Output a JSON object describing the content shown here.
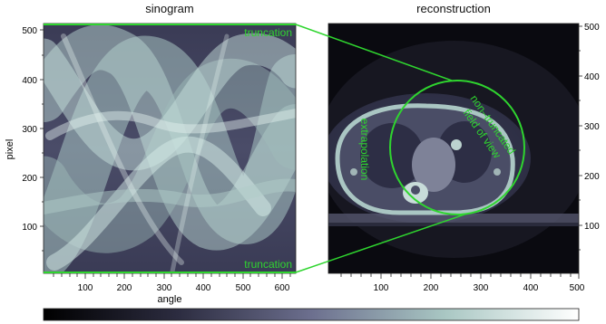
{
  "left_panel": {
    "title": "sinogram",
    "xlabel": "angle",
    "ylabel": "pixel",
    "xticks": [
      "100",
      "200",
      "300",
      "400",
      "500",
      "600"
    ],
    "yticks": [
      "100",
      "200",
      "300",
      "400",
      "500"
    ],
    "annotation_top": "truncation",
    "annotation_bottom": "truncation"
  },
  "right_panel": {
    "title": "reconstruction",
    "xticks": [
      "100",
      "200",
      "300",
      "400",
      "500"
    ],
    "yticks": [
      "100",
      "200",
      "300",
      "400",
      "500"
    ],
    "annotation_extrapolation": "extrapolation",
    "annotation_fov_line1": "non–truncated",
    "annotation_fov_line2": "field of view"
  },
  "colors": {
    "annotation": "#2fd52f",
    "colormap_dark": "#000000",
    "colormap_mid": "#6c6f8e",
    "colormap_light": "#ffffff"
  }
}
